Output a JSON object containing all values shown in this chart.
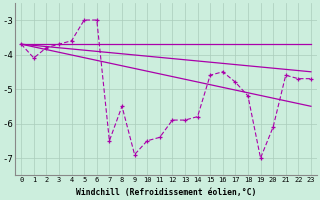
{
  "xlabel": "Windchill (Refroidissement éolien,°C)",
  "xlim": [
    -0.5,
    23.5
  ],
  "ylim": [
    -7.5,
    -2.5
  ],
  "yticks": [
    -7,
    -6,
    -5,
    -4,
    -3
  ],
  "xticks": [
    0,
    1,
    2,
    3,
    4,
    5,
    6,
    7,
    8,
    9,
    10,
    11,
    12,
    13,
    14,
    15,
    16,
    17,
    18,
    19,
    20,
    21,
    22,
    23
  ],
  "bg_color": "#cceedd",
  "grid_color": "#aaccbb",
  "line_color": "#aa00aa",
  "zigzag": {
    "x": [
      0,
      1,
      2,
      3,
      4,
      5,
      6,
      7,
      8,
      9,
      10,
      11,
      12,
      13,
      14,
      15,
      16,
      17,
      18,
      19,
      20,
      21,
      22,
      23
    ],
    "y": [
      -3.7,
      -4.1,
      -3.8,
      -3.7,
      -3.6,
      -3.0,
      -3.0,
      -6.5,
      -5.5,
      -6.9,
      -6.5,
      -6.4,
      -5.9,
      -5.9,
      -5.8,
      -4.6,
      -4.5,
      -4.8,
      -5.2,
      -7.0,
      -6.1,
      -4.6,
      -4.7,
      -4.7
    ]
  },
  "fan_lines": [
    {
      "x": [
        0,
        4,
        23
      ],
      "y": [
        -3.7,
        -3.6,
        -3.7
      ]
    },
    {
      "x": [
        0,
        4,
        23
      ],
      "y": [
        -3.7,
        -3.6,
        -4.5
      ]
    },
    {
      "x": [
        0,
        4,
        23
      ],
      "y": [
        -3.7,
        -3.6,
        -5.5
      ]
    }
  ]
}
